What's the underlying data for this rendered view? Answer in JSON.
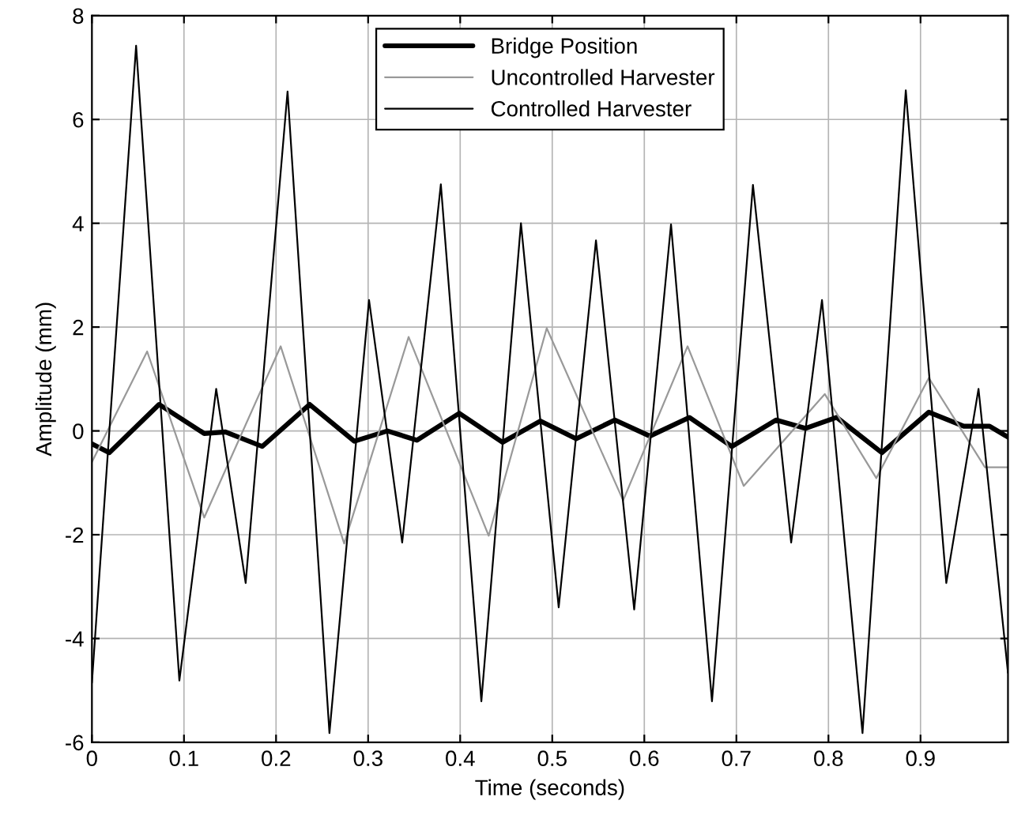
{
  "chart_data": {
    "type": "line",
    "xlabel": "Time (seconds)",
    "ylabel": "Amplitude (mm)",
    "xlim": [
      0,
      0.995
    ],
    "xticks": [
      0,
      0.1,
      0.2,
      0.3,
      0.4,
      0.5,
      0.6,
      0.7,
      0.8,
      0.9
    ],
    "ylim": [
      -6,
      8
    ],
    "yticks": [
      -6,
      -4,
      -2,
      0,
      2,
      4,
      6,
      8
    ],
    "grid": true,
    "legend": "top",
    "marker": "none",
    "line_style": "solid",
    "series": [
      {
        "name": "Bridge Position",
        "color": "#000000",
        "x": [
          0,
          0.019,
          0.073,
          0.122,
          0.145,
          0.185,
          0.2365,
          0.285,
          0.321,
          0.353,
          0.399,
          0.446,
          0.487,
          0.526,
          0.568,
          0.606,
          0.649,
          0.695,
          0.743,
          0.775,
          0.809,
          0.858,
          0.909,
          0.947,
          0.975,
          0.995
        ],
        "values": [
          -0.25,
          -0.42,
          0.51,
          -0.05,
          -0.02,
          -0.3,
          0.51,
          -0.2,
          0.0,
          -0.18,
          0.34,
          -0.22,
          0.19,
          -0.15,
          0.21,
          -0.1,
          0.26,
          -0.3,
          0.21,
          0.05,
          0.26,
          -0.42,
          0.36,
          0.09,
          0.09,
          -0.12
        ]
      },
      {
        "name": "Uncontrolled Harvester",
        "color": "#999999",
        "x": [
          0,
          0.06,
          0.122,
          0.205,
          0.274,
          0.344,
          0.431,
          0.494,
          0.577,
          0.647,
          0.708,
          0.796,
          0.852,
          0.909,
          0.97,
          0.995
        ],
        "values": [
          -0.6,
          1.53,
          -1.67,
          1.63,
          -2.17,
          1.81,
          -2.02,
          1.98,
          -1.34,
          1.63,
          -1.06,
          0.71,
          -0.91,
          1.02,
          -0.7,
          -0.7
        ]
      },
      {
        "name": "Controlled Harvester",
        "color": "#000000",
        "x": [
          0,
          0.048,
          0.095,
          0.135,
          0.167,
          0.2125,
          0.258,
          0.301,
          0.337,
          0.379,
          0.423,
          0.466,
          0.507,
          0.5475,
          0.589,
          0.629,
          0.6735,
          0.718,
          0.7595,
          0.793,
          0.837,
          0.884,
          0.928,
          0.963,
          0.995
        ],
        "values": [
          -4.85,
          7.42,
          -4.81,
          0.81,
          -2.93,
          6.54,
          -5.82,
          2.52,
          -2.15,
          4.75,
          -5.21,
          4.0,
          -3.4,
          3.67,
          -3.44,
          3.98,
          -5.21,
          4.74,
          -2.15,
          2.52,
          -5.82,
          6.56,
          -2.93,
          0.81,
          -4.66
        ]
      }
    ]
  }
}
